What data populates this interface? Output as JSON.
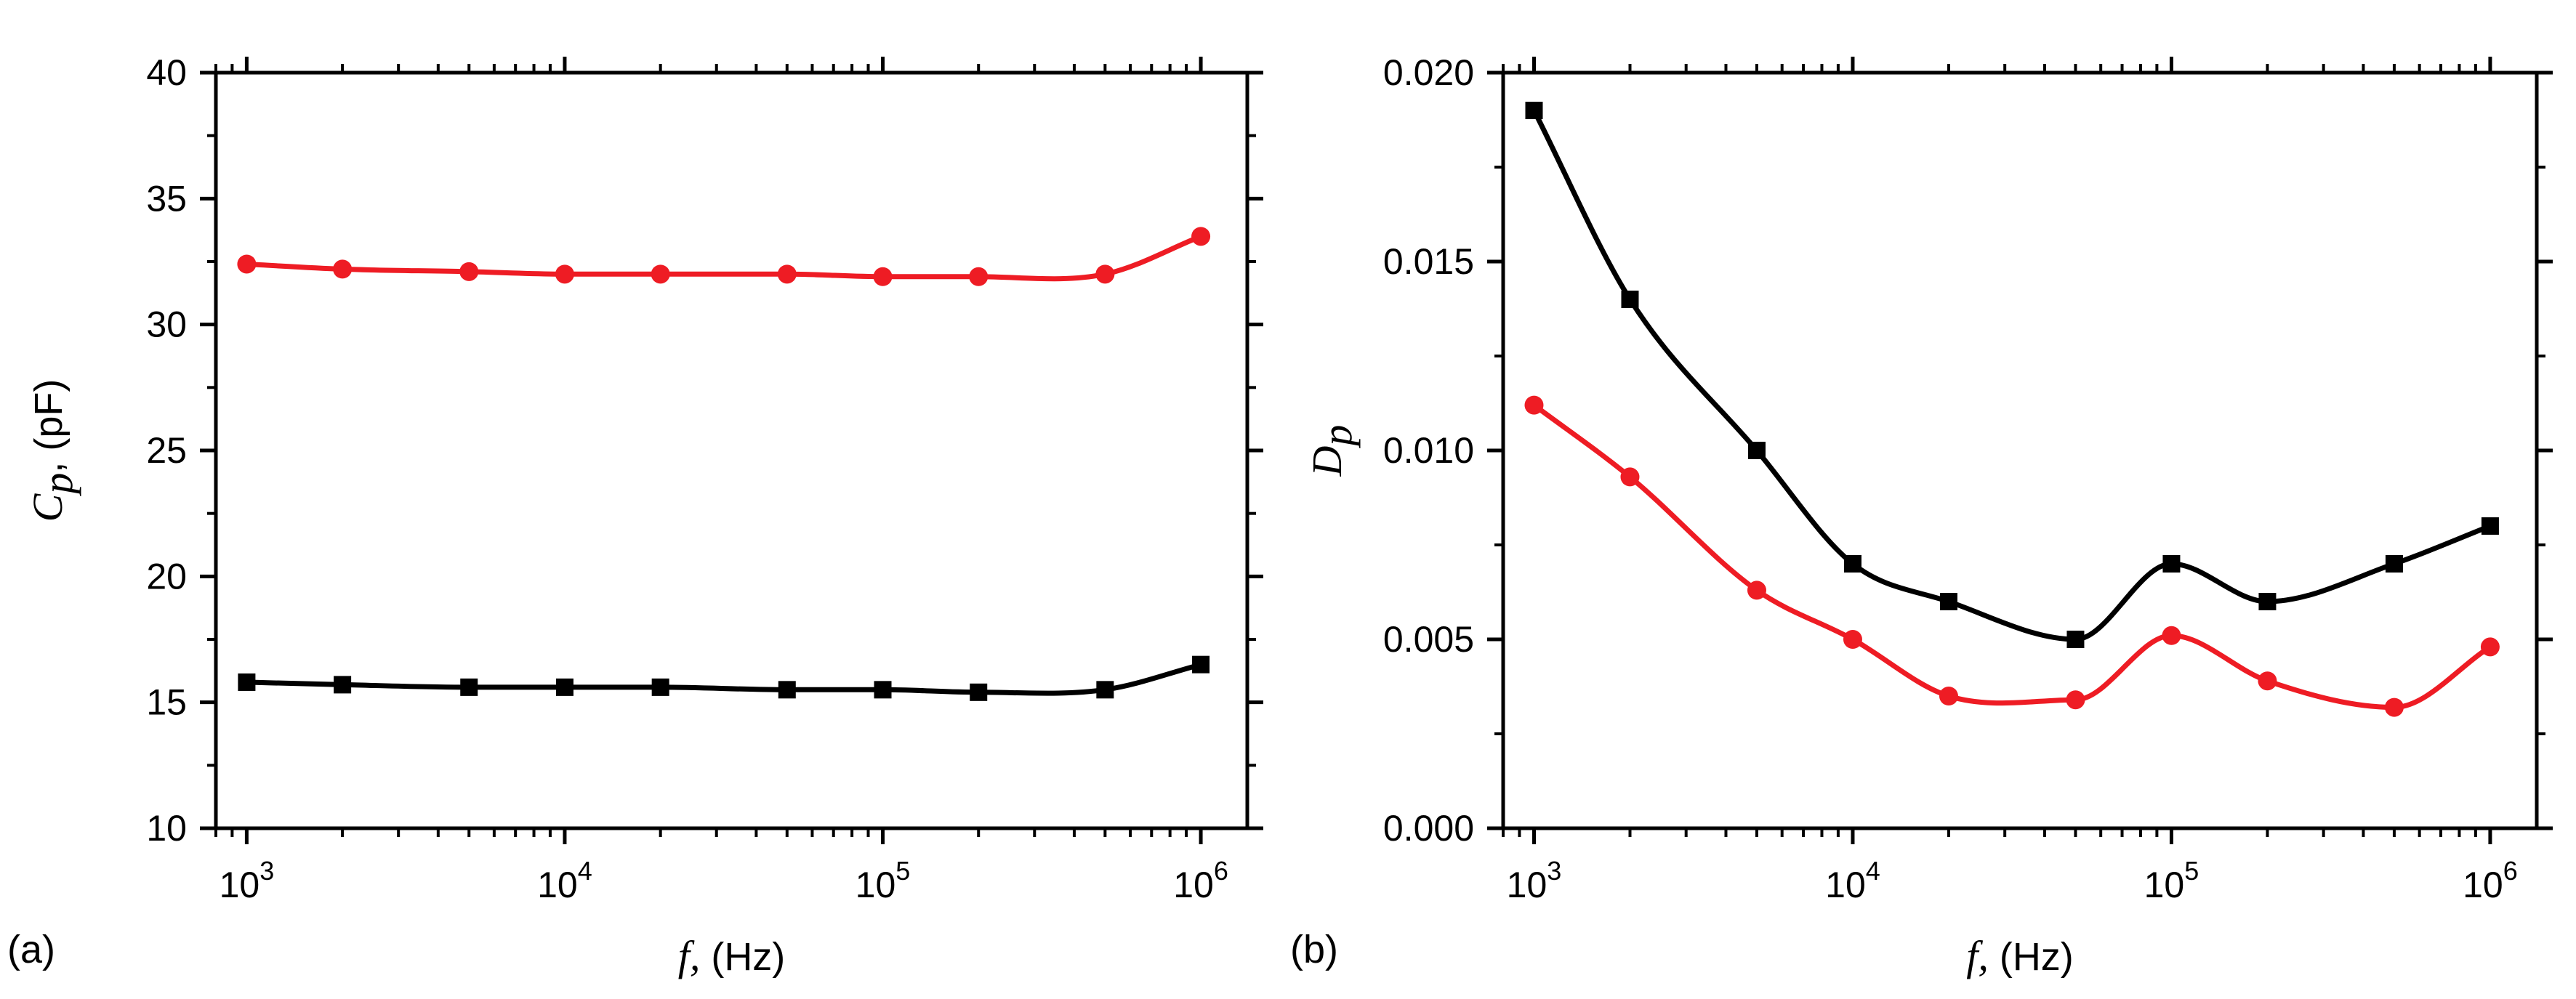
{
  "chart_data": [
    {
      "type": "line",
      "panel_label": "(a)",
      "xscale": "log",
      "xlim": [
        800,
        1400000
      ],
      "ylim": [
        10,
        40
      ],
      "ylabel_var": "C",
      "ylabel_sub": "p",
      "ylabel_unit": ", (pF)",
      "xlabel_var": "f,",
      "xlabel_unit": " (Hz)",
      "ytick_labels": [
        "10",
        "15",
        "20",
        "25",
        "30",
        "35",
        "40"
      ],
      "yticks": [
        10,
        15,
        20,
        25,
        30,
        35,
        40
      ],
      "xtick_base": "10",
      "xtick_exponents": [
        "3",
        "4",
        "5",
        "6"
      ],
      "series": [
        {
          "name": "red",
          "color": "#ee1c24",
          "marker": "circle",
          "x": [
            1000,
            2000,
            5000,
            10000,
            20000,
            50000,
            100000,
            200000,
            500000,
            1000000
          ],
          "values": [
            32.4,
            32.2,
            32.1,
            32.0,
            32.0,
            32.0,
            31.9,
            31.9,
            32.0,
            33.5
          ]
        },
        {
          "name": "black",
          "color": "#000000",
          "marker": "square",
          "x": [
            1000,
            2000,
            5000,
            10000,
            20000,
            50000,
            100000,
            200000,
            500000,
            1000000
          ],
          "values": [
            15.8,
            15.7,
            15.6,
            15.6,
            15.6,
            15.5,
            15.5,
            15.4,
            15.5,
            16.5
          ]
        }
      ]
    },
    {
      "type": "line",
      "panel_label": "(b)",
      "xscale": "log",
      "xlim": [
        800,
        1400000
      ],
      "ylim": [
        0.0,
        0.02
      ],
      "ylabel_var": "D",
      "ylabel_sub": "p",
      "ylabel_unit": "",
      "xlabel_var": "f,",
      "xlabel_unit": " (Hz)",
      "ytick_labels": [
        "0.000",
        "0.005",
        "0.010",
        "0.015",
        "0.020"
      ],
      "yticks": [
        0.0,
        0.005,
        0.01,
        0.015,
        0.02
      ],
      "xtick_base": "10",
      "xtick_exponents": [
        "3",
        "4",
        "5",
        "6"
      ],
      "series": [
        {
          "name": "black",
          "color": "#000000",
          "marker": "square",
          "x": [
            1000,
            2000,
            5000,
            10000,
            20000,
            50000,
            100000,
            200000,
            500000,
            1000000
          ],
          "values": [
            0.019,
            0.014,
            0.01,
            0.007,
            0.006,
            0.005,
            0.007,
            0.006,
            0.007,
            0.008
          ]
        },
        {
          "name": "red",
          "color": "#ee1c24",
          "marker": "circle",
          "x": [
            1000,
            2000,
            5000,
            10000,
            20000,
            50000,
            100000,
            200000,
            500000,
            1000000
          ],
          "values": [
            0.0112,
            0.0093,
            0.0063,
            0.005,
            0.0035,
            0.0034,
            0.0051,
            0.0039,
            0.0032,
            0.0048
          ]
        }
      ]
    }
  ]
}
